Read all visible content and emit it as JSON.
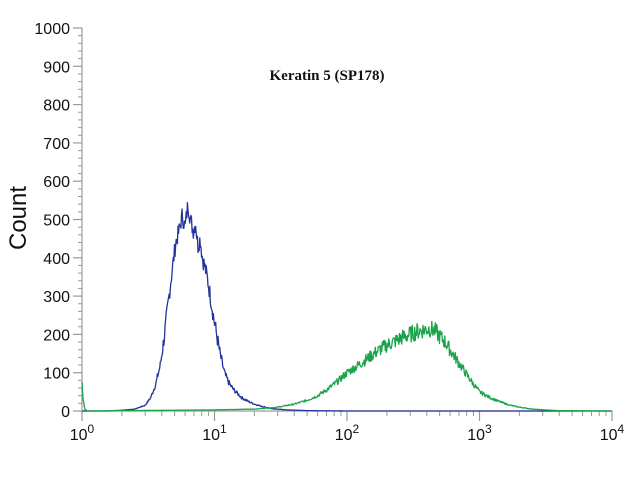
{
  "chart_data": {
    "type": "line",
    "title": "Keratin 5 (SP178)",
    "xlabel": "",
    "ylabel": "Count",
    "x_scale": "log",
    "xlim": [
      1,
      10000
    ],
    "ylim": [
      0,
      1000
    ],
    "x_ticks": [
      {
        "value": 1,
        "base": "10",
        "exp": "0"
      },
      {
        "value": 10,
        "base": "10",
        "exp": "1"
      },
      {
        "value": 100,
        "base": "10",
        "exp": "2"
      },
      {
        "value": 1000,
        "base": "10",
        "exp": "3"
      },
      {
        "value": 10000,
        "base": "10",
        "exp": "4"
      }
    ],
    "y_ticks": [
      "0",
      "100",
      "200",
      "300",
      "400",
      "500",
      "600",
      "700",
      "800",
      "900",
      "1000"
    ],
    "grid": false,
    "series": [
      {
        "color": "#23339a",
        "x": [
          1,
          1.5,
          2,
          2.5,
          3,
          3.3,
          3.6,
          3.9,
          4.2,
          4.5,
          4.8,
          5.1,
          5.4,
          5.7,
          6,
          6.3,
          6.6,
          6.9,
          7.2,
          7.5,
          7.8,
          8.1,
          8.4,
          8.8,
          9.2,
          9.6,
          10,
          10.5,
          11,
          11.5,
          12,
          13,
          14,
          15,
          16,
          18,
          20,
          23,
          27,
          35,
          50,
          100,
          1000,
          10000
        ],
        "y": [
          0,
          0,
          2,
          5,
          15,
          35,
          70,
          120,
          200,
          290,
          370,
          440,
          470,
          510,
          480,
          540,
          500,
          470,
          490,
          430,
          450,
          400,
          380,
          350,
          310,
          270,
          230,
          190,
          150,
          120,
          95,
          70,
          55,
          45,
          35,
          25,
          18,
          12,
          6,
          3,
          1,
          0,
          0,
          0
        ]
      },
      {
        "color": "#1aa34a",
        "x": [
          1,
          1.02,
          1.05,
          1.1,
          2,
          5,
          10,
          20,
          30,
          40,
          50,
          60,
          70,
          80,
          90,
          100,
          120,
          140,
          160,
          180,
          200,
          230,
          260,
          300,
          340,
          380,
          420,
          460,
          500,
          550,
          600,
          700,
          800,
          900,
          1000,
          1200,
          1400,
          1700,
          2000,
          2500,
          3000,
          4000,
          10000
        ],
        "y": [
          70,
          30,
          5,
          0,
          1,
          2,
          3,
          5,
          10,
          18,
          28,
          40,
          55,
          70,
          85,
          100,
          118,
          135,
          150,
          162,
          172,
          182,
          192,
          200,
          208,
          212,
          215,
          210,
          195,
          180,
          160,
          125,
          95,
          70,
          50,
          35,
          25,
          15,
          10,
          5,
          3,
          1,
          0
        ]
      }
    ]
  }
}
